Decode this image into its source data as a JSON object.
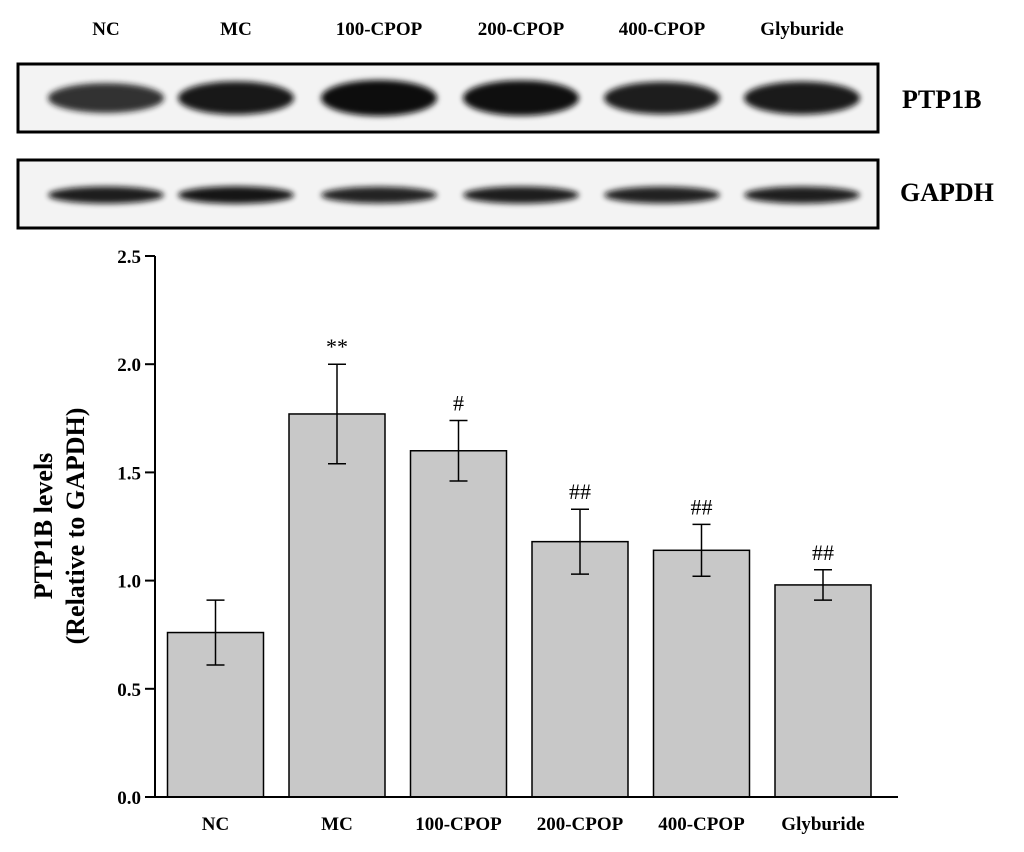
{
  "blot": {
    "lane_labels": [
      "NC",
      "MC",
      "100-CPOP",
      "200-CPOP",
      "400-CPOP",
      "Glyburide"
    ],
    "rows": [
      {
        "label": "PTP1B",
        "intensity": [
          0.72,
          0.88,
          1.0,
          0.97,
          0.84,
          0.86
        ]
      },
      {
        "label": "GAPDH",
        "intensity": [
          0.85,
          0.9,
          0.78,
          0.84,
          0.8,
          0.82
        ]
      }
    ]
  },
  "chart_data": {
    "type": "bar",
    "categories": [
      "NC",
      "MC",
      "100-CPOP",
      "200-CPOP",
      "400-CPOP",
      "Glyburide"
    ],
    "values": [
      0.76,
      1.77,
      1.6,
      1.18,
      1.14,
      0.98
    ],
    "errors": [
      0.15,
      0.23,
      0.14,
      0.15,
      0.12,
      0.07
    ],
    "annotations": [
      "",
      "**",
      "#",
      "##",
      "##",
      "##"
    ],
    "ylabel_lines": [
      "PTP1B levels",
      "(Relative to GAPDH)"
    ],
    "ylim": [
      0.0,
      2.5
    ],
    "yticks": [
      "0.0",
      "0.5",
      "1.0",
      "1.5",
      "2.0",
      "2.5"
    ],
    "bar_color": "#c8c8c8",
    "grid": false
  }
}
